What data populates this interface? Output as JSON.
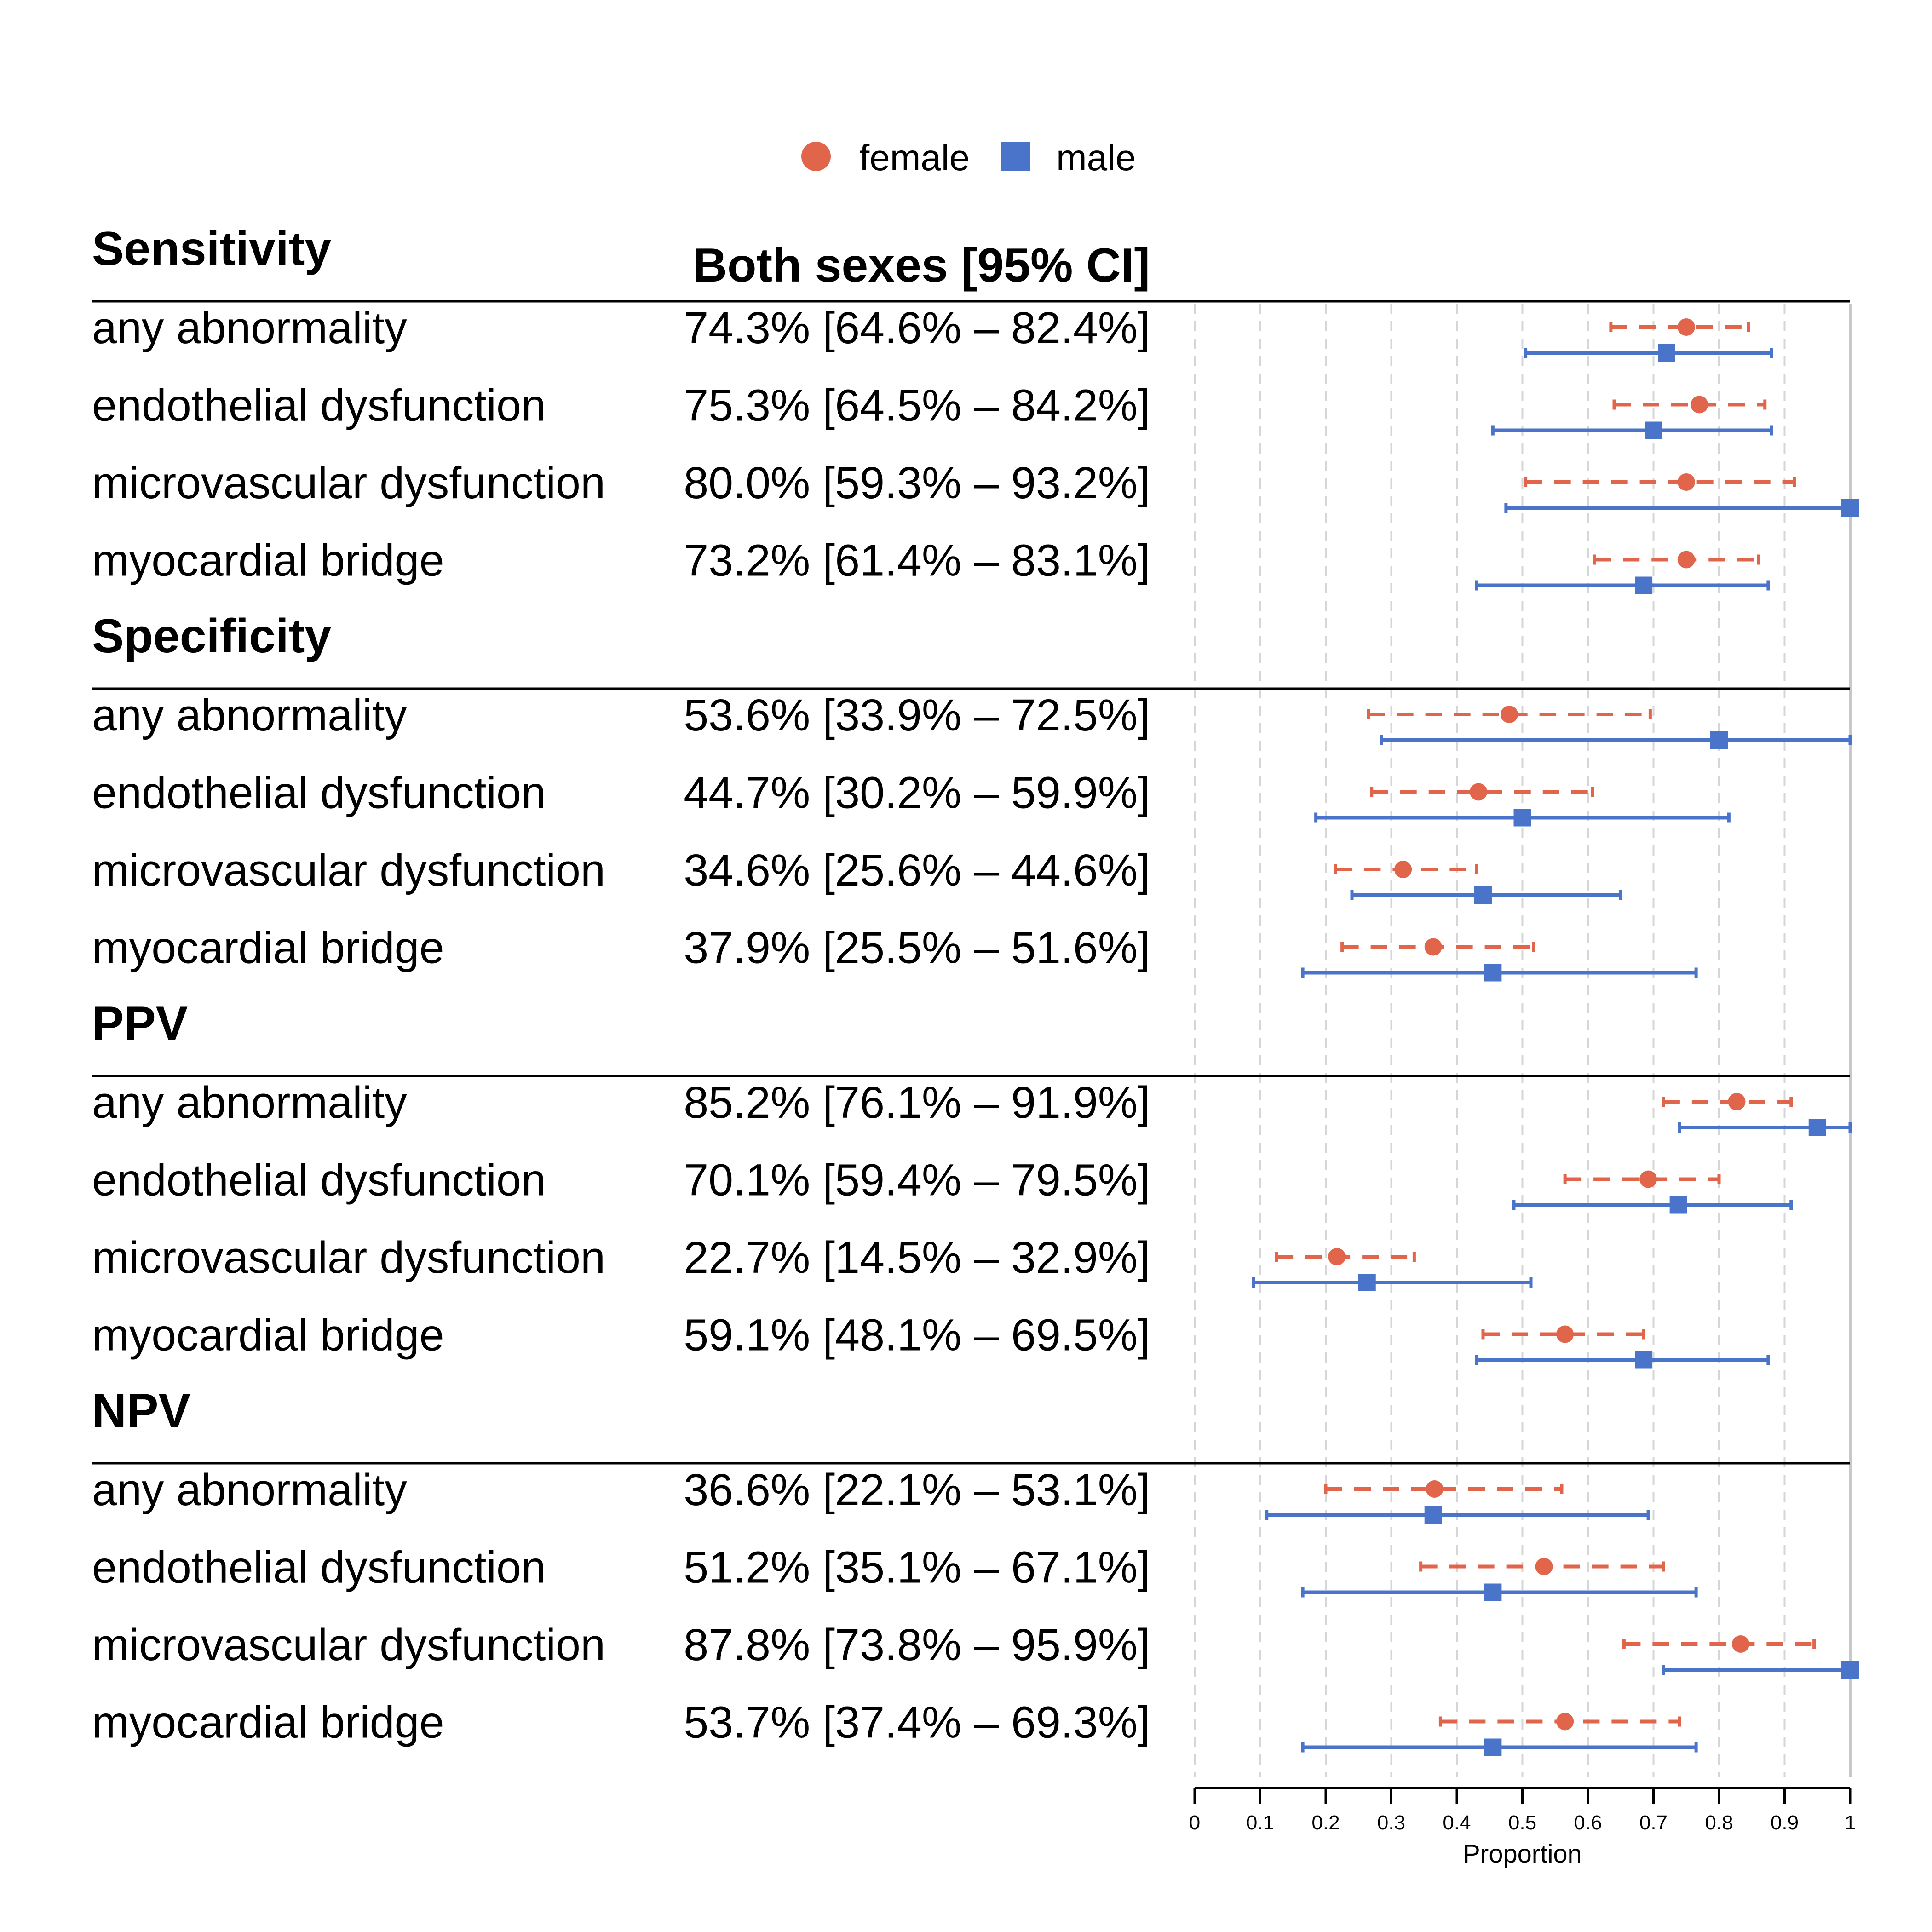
{
  "legend": {
    "female": "female",
    "male": "male"
  },
  "column_headers": {
    "estimate": "Both sexes [95% CI]"
  },
  "colors": {
    "female": "#e0654a",
    "male": "#4a74c9",
    "grid": "#d6d6d6",
    "text": "#000000"
  },
  "chart_data": {
    "type": "forest",
    "xlabel": "Proportion",
    "xlim": [
      0,
      1
    ],
    "x_ticks": [
      "0",
      "0.1",
      "0.2",
      "0.3",
      "0.4",
      "0.5",
      "0.6",
      "0.7",
      "0.8",
      "0.9",
      "1"
    ],
    "x_tick_values": [
      0,
      0.1,
      0.2,
      0.3,
      0.4,
      0.5,
      0.6,
      0.7,
      0.8,
      0.9,
      1
    ],
    "grid": true,
    "legend_position": "top-center",
    "series": [
      {
        "name": "female",
        "marker": "circle",
        "line": "dashed"
      },
      {
        "name": "male",
        "marker": "square",
        "line": "solid"
      }
    ],
    "groups": [
      {
        "title": "Sensitivity",
        "rows": [
          {
            "label": "any abnormality",
            "both": "74.3% [64.6% – 82.4%]",
            "female": {
              "est": 0.75,
              "lo": 0.635,
              "hi": 0.845
            },
            "male": {
              "est": 0.72,
              "lo": 0.505,
              "hi": 0.88
            }
          },
          {
            "label": "endothelial dysfunction",
            "both": "75.3% [64.5% – 84.2%]",
            "female": {
              "est": 0.77,
              "lo": 0.64,
              "hi": 0.87
            },
            "male": {
              "est": 0.7,
              "lo": 0.455,
              "hi": 0.88
            }
          },
          {
            "label": "microvascular dysfunction",
            "both": "80.0% [59.3% – 93.2%]",
            "female": {
              "est": 0.75,
              "lo": 0.505,
              "hi": 0.915
            },
            "male": {
              "est": 1.0,
              "lo": 0.475,
              "hi": 1.0
            }
          },
          {
            "label": "myocardial bridge",
            "both": "73.2% [61.4% – 83.1%]",
            "female": {
              "est": 0.75,
              "lo": 0.61,
              "hi": 0.86
            },
            "male": {
              "est": 0.685,
              "lo": 0.43,
              "hi": 0.875
            }
          }
        ]
      },
      {
        "title": "Specificity",
        "rows": [
          {
            "label": "any abnormality",
            "both": "53.6% [33.9% – 72.5%]",
            "female": {
              "est": 0.48,
              "lo": 0.265,
              "hi": 0.695
            },
            "male": {
              "est": 0.8,
              "lo": 0.285,
              "hi": 1.0
            }
          },
          {
            "label": "endothelial dysfunction",
            "both": "44.7% [30.2% – 59.9%]",
            "female": {
              "est": 0.433,
              "lo": 0.27,
              "hi": 0.607
            },
            "male": {
              "est": 0.5,
              "lo": 0.185,
              "hi": 0.815
            }
          },
          {
            "label": "microvascular dysfunction",
            "both": "34.6% [25.6% – 44.6%]",
            "female": {
              "est": 0.318,
              "lo": 0.215,
              "hi": 0.43
            },
            "male": {
              "est": 0.44,
              "lo": 0.24,
              "hi": 0.65
            }
          },
          {
            "label": "myocardial bridge",
            "both": "37.9% [25.5% – 51.6%]",
            "female": {
              "est": 0.364,
              "lo": 0.225,
              "hi": 0.517
            },
            "male": {
              "est": 0.455,
              "lo": 0.165,
              "hi": 0.765
            }
          }
        ]
      },
      {
        "title": "PPV",
        "rows": [
          {
            "label": "any abnormality",
            "both": "85.2% [76.1% – 91.9%]",
            "female": {
              "est": 0.827,
              "lo": 0.715,
              "hi": 0.91
            },
            "male": {
              "est": 0.95,
              "lo": 0.74,
              "hi": 1.0
            }
          },
          {
            "label": "endothelial dysfunction",
            "both": "70.1% [59.4% – 79.5%]",
            "female": {
              "est": 0.692,
              "lo": 0.565,
              "hi": 0.8
            },
            "male": {
              "est": 0.738,
              "lo": 0.487,
              "hi": 0.91
            }
          },
          {
            "label": "microvascular dysfunction",
            "both": "22.7% [14.5% – 32.9%]",
            "female": {
              "est": 0.217,
              "lo": 0.125,
              "hi": 0.335
            },
            "male": {
              "est": 0.263,
              "lo": 0.09,
              "hi": 0.513
            }
          },
          {
            "label": "myocardial bridge",
            "both": "59.1% [48.1% – 69.5%]",
            "female": {
              "est": 0.565,
              "lo": 0.44,
              "hi": 0.685
            },
            "male": {
              "est": 0.685,
              "lo": 0.43,
              "hi": 0.875
            }
          }
        ]
      },
      {
        "title": "NPV",
        "rows": [
          {
            "label": "any abnormality",
            "both": "36.6% [22.1% – 53.1%]",
            "female": {
              "est": 0.366,
              "lo": 0.2,
              "hi": 0.56
            },
            "male": {
              "est": 0.364,
              "lo": 0.11,
              "hi": 0.692
            }
          },
          {
            "label": "endothelial dysfunction",
            "both": "51.2% [35.1% – 67.1%]",
            "female": {
              "est": 0.533,
              "lo": 0.345,
              "hi": 0.715
            },
            "male": {
              "est": 0.455,
              "lo": 0.165,
              "hi": 0.765
            }
          },
          {
            "label": "microvascular dysfunction",
            "both": "87.8% [73.8% – 95.9%]",
            "female": {
              "est": 0.833,
              "lo": 0.655,
              "hi": 0.945
            },
            "male": {
              "est": 1.0,
              "lo": 0.715,
              "hi": 1.0
            }
          },
          {
            "label": "myocardial bridge",
            "both": "53.7% [37.4% – 69.3%]",
            "female": {
              "est": 0.565,
              "lo": 0.375,
              "hi": 0.74
            },
            "male": {
              "est": 0.455,
              "lo": 0.165,
              "hi": 0.765
            }
          }
        ]
      }
    ]
  }
}
